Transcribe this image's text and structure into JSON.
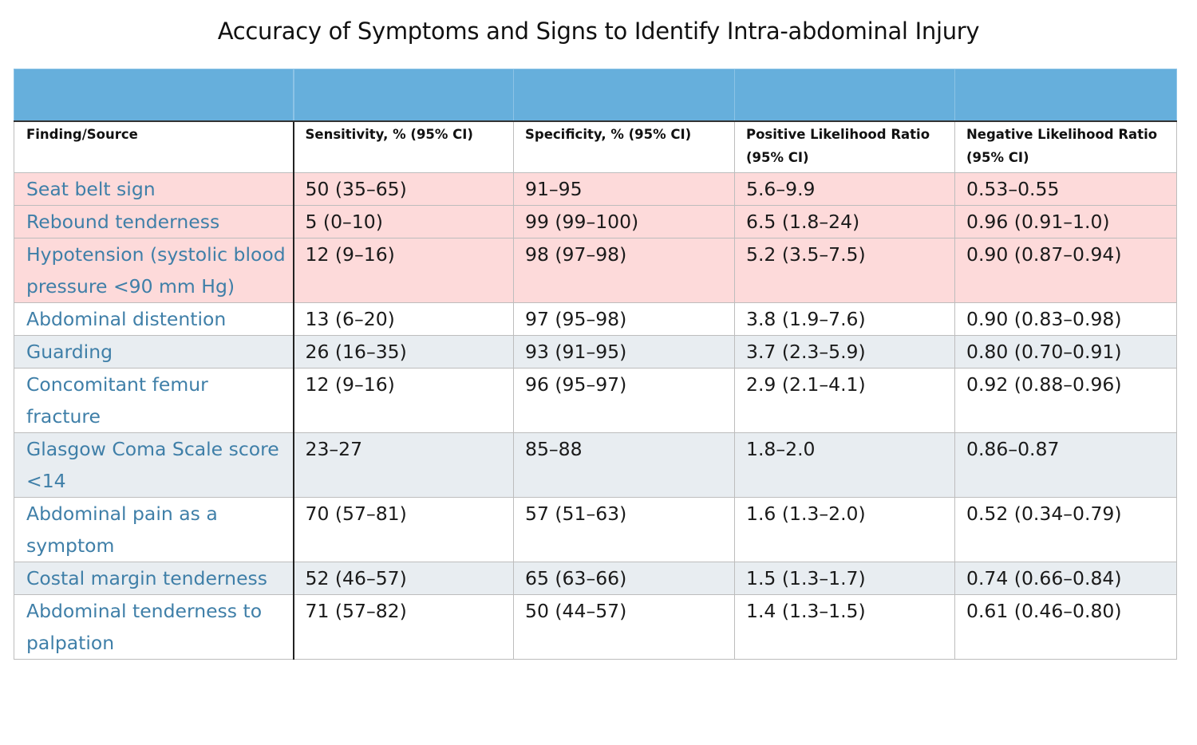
{
  "title": "Accuracy of Symptoms and Signs to Identify Intra-abdominal Injury",
  "colors": {
    "header_band": "#66afdc",
    "highlight_row": "#fddada",
    "alt_row": "#e8edf1",
    "finding_text": "#3f7fa8"
  },
  "columns": [
    "Finding/Source",
    "Sensitivity, % (95% CI)",
    "Specificity, % (95% CI)",
    "Positive Likelihood Ratio (95% CI)",
    "Negative Likelihood Ratio (95% CI)"
  ],
  "rows": [
    {
      "finding": "Seat belt sign",
      "sensitivity": "50 (35–65)",
      "specificity": "91–95",
      "plr": "5.6–9.9",
      "nlr": "0.53–0.55"
    },
    {
      "finding": "Rebound tenderness",
      "sensitivity": "5 (0–10)",
      "specificity": "99 (99–100)",
      "plr": "6.5 (1.8–24)",
      "nlr": "0.96 (0.91–1.0)"
    },
    {
      "finding": "Hypotension (systolic blood pressure <90 mm Hg)",
      "sensitivity": "12 (9–16)",
      "specificity": "98 (97–98)",
      "plr": "5.2 (3.5–7.5)",
      "nlr": "0.90 (0.87–0.94)"
    },
    {
      "finding": "Abdominal distention",
      "sensitivity": "13 (6–20)",
      "specificity": "97 (95–98)",
      "plr": "3.8 (1.9–7.6)",
      "nlr": "0.90 (0.83–0.98)"
    },
    {
      "finding": "Guarding",
      "sensitivity": "26 (16–35)",
      "specificity": "93 (91–95)",
      "plr": "3.7 (2.3–5.9)",
      "nlr": "0.80 (0.70–0.91)"
    },
    {
      "finding": "Concomitant femur fracture",
      "sensitivity": "12 (9–16)",
      "specificity": "96 (95–97)",
      "plr": "2.9 (2.1–4.1)",
      "nlr": "0.92 (0.88–0.96)"
    },
    {
      "finding": "Glasgow Coma Scale score <14",
      "sensitivity": "23–27",
      "specificity": "85–88",
      "plr": "1.8–2.0",
      "nlr": "0.86–0.87"
    },
    {
      "finding": "Abdominal pain as a symptom",
      "sensitivity": "70 (57–81)",
      "specificity": "57 (51–63)",
      "plr": "1.6 (1.3–2.0)",
      "nlr": "0.52 (0.34–0.79)"
    },
    {
      "finding": "Costal margin tenderness",
      "sensitivity": "52 (46–57)",
      "specificity": "65 (63–66)",
      "plr": "1.5 (1.3–1.7)",
      "nlr": "0.74 (0.66–0.84)"
    },
    {
      "finding": "Abdominal tenderness to palpation",
      "sensitivity": "71 (57–82)",
      "specificity": "50 (44–57)",
      "plr": "1.4 (1.3–1.5)",
      "nlr": "0.61 (0.46–0.80)"
    }
  ]
}
